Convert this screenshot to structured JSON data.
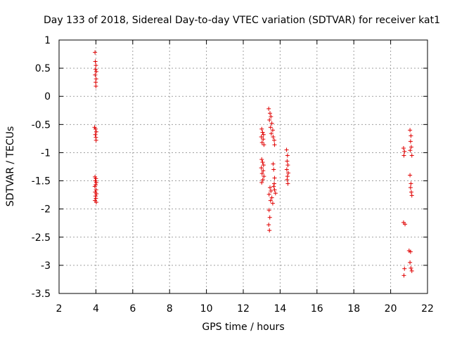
{
  "chart_data": {
    "type": "scatter",
    "title": "Day 133 of 2018, Sidereal Day-to-day VTEC variation (SDTVAR) for receiver kat1",
    "xlabel": "GPS time / hours",
    "ylabel": "SDTVAR / TECUs",
    "xlim": [
      2,
      22
    ],
    "ylim": [
      -3.5,
      1
    ],
    "xticks": [
      "2",
      "4",
      "6",
      "8",
      "10",
      "12",
      "14",
      "16",
      "18",
      "20",
      "22"
    ],
    "yticks": [
      "1",
      "0.5",
      "0",
      "-0.5",
      "-1",
      "-1.5",
      "-2",
      "-2.5",
      "-3",
      "-3.5"
    ],
    "grid": true,
    "marker": "plus",
    "color": "#e00000",
    "points": [
      [
        3.95,
        0.78
      ],
      [
        3.97,
        0.62
      ],
      [
        4.0,
        0.55
      ],
      [
        3.98,
        0.48
      ],
      [
        4.02,
        0.44
      ],
      [
        3.96,
        0.38
      ],
      [
        4.01,
        0.31
      ],
      [
        3.99,
        0.25
      ],
      [
        4.0,
        0.18
      ],
      [
        3.93,
        -0.55
      ],
      [
        3.98,
        -0.58
      ],
      [
        4.02,
        -0.63
      ],
      [
        3.97,
        -0.68
      ],
      [
        4.0,
        -0.73
      ],
      [
        4.01,
        -0.78
      ],
      [
        3.95,
        -1.43
      ],
      [
        4.0,
        -1.46
      ],
      [
        3.97,
        -1.5
      ],
      [
        4.02,
        -1.53
      ],
      [
        3.99,
        -1.57
      ],
      [
        3.94,
        -1.6
      ],
      [
        4.01,
        -1.66
      ],
      [
        3.96,
        -1.7
      ],
      [
        4.03,
        -1.73
      ],
      [
        3.98,
        -1.77
      ],
      [
        4.0,
        -1.81
      ],
      [
        3.95,
        -1.85
      ],
      [
        4.02,
        -1.88
      ],
      [
        13.0,
        -0.58
      ],
      [
        13.05,
        -0.64
      ],
      [
        13.1,
        -0.68
      ],
      [
        12.98,
        -0.72
      ],
      [
        13.08,
        -0.76
      ],
      [
        13.02,
        -0.82
      ],
      [
        13.12,
        -0.86
      ],
      [
        13.0,
        -1.12
      ],
      [
        13.05,
        -1.17
      ],
      [
        13.1,
        -1.22
      ],
      [
        12.98,
        -1.27
      ],
      [
        13.08,
        -1.32
      ],
      [
        13.02,
        -1.37
      ],
      [
        13.12,
        -1.42
      ],
      [
        13.06,
        -1.48
      ],
      [
        13.0,
        -1.53
      ],
      [
        13.38,
        -0.22
      ],
      [
        13.45,
        -0.3
      ],
      [
        13.5,
        -0.36
      ],
      [
        13.42,
        -0.42
      ],
      [
        13.55,
        -0.48
      ],
      [
        13.48,
        -0.55
      ],
      [
        13.6,
        -0.6
      ],
      [
        13.52,
        -0.66
      ],
      [
        13.62,
        -0.72
      ],
      [
        13.68,
        -0.78
      ],
      [
        13.7,
        -0.86
      ],
      [
        13.45,
        -1.62
      ],
      [
        13.5,
        -1.68
      ],
      [
        13.4,
        -1.74
      ],
      [
        13.55,
        -1.8
      ],
      [
        13.48,
        -1.85
      ],
      [
        13.6,
        -1.9
      ],
      [
        13.65,
        -1.6
      ],
      [
        13.7,
        -1.66
      ],
      [
        13.75,
        -1.72
      ],
      [
        13.62,
        -1.2
      ],
      [
        13.65,
        -1.3
      ],
      [
        13.7,
        -1.45
      ],
      [
        13.68,
        -1.55
      ],
      [
        13.4,
        -2.02
      ],
      [
        13.44,
        -2.15
      ],
      [
        13.38,
        -2.28
      ],
      [
        13.42,
        -2.38
      ],
      [
        14.35,
        -0.95
      ],
      [
        14.4,
        -1.05
      ],
      [
        14.38,
        -1.15
      ],
      [
        14.42,
        -1.22
      ],
      [
        14.36,
        -1.3
      ],
      [
        14.44,
        -1.36
      ],
      [
        14.4,
        -1.42
      ],
      [
        14.38,
        -1.48
      ],
      [
        14.42,
        -1.55
      ],
      [
        20.7,
        -0.92
      ],
      [
        20.75,
        -0.98
      ],
      [
        20.72,
        -1.05
      ],
      [
        21.05,
        -0.6
      ],
      [
        21.1,
        -0.7
      ],
      [
        21.08,
        -0.8
      ],
      [
        21.12,
        -0.9
      ],
      [
        21.06,
        -0.96
      ],
      [
        21.15,
        -1.05
      ],
      [
        21.05,
        -1.4
      ],
      [
        21.1,
        -1.55
      ],
      [
        21.08,
        -1.62
      ],
      [
        21.12,
        -1.7
      ],
      [
        21.15,
        -1.76
      ],
      [
        20.7,
        -2.24
      ],
      [
        20.78,
        -2.27
      ],
      [
        21.0,
        -2.74
      ],
      [
        21.08,
        -2.76
      ],
      [
        20.75,
        -3.06
      ],
      [
        20.72,
        -3.18
      ],
      [
        21.05,
        -2.95
      ],
      [
        21.1,
        -3.05
      ],
      [
        21.15,
        -3.1
      ]
    ]
  }
}
